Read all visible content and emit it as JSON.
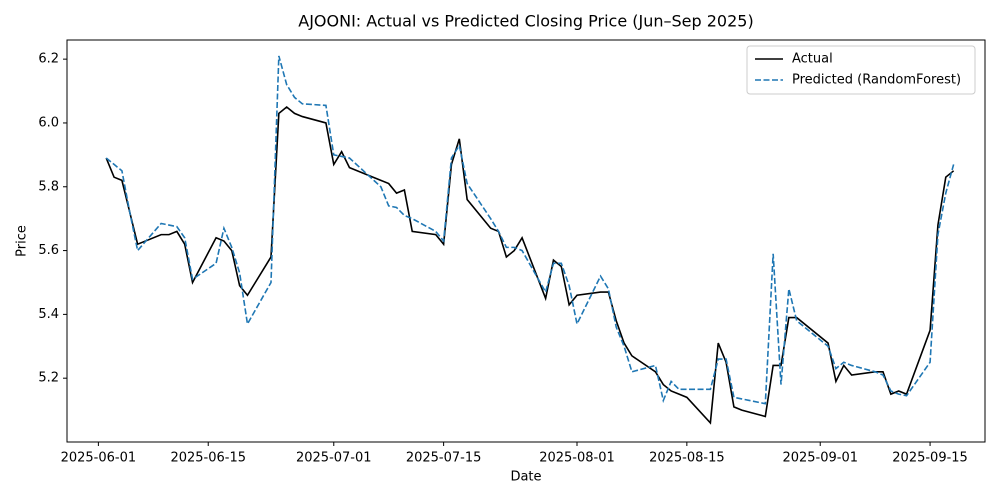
{
  "chart_data": {
    "type": "line",
    "title": "AJOONI: Actual vs Predicted Closing Price (Jun–Sep 2025)",
    "x_label": "Date",
    "y_label": "Price",
    "x": [
      "2025-06-02",
      "2025-06-03",
      "2025-06-04",
      "2025-06-05",
      "2025-06-06",
      "2025-06-09",
      "2025-06-10",
      "2025-06-11",
      "2025-06-12",
      "2025-06-13",
      "2025-06-16",
      "2025-06-17",
      "2025-06-18",
      "2025-06-19",
      "2025-06-20",
      "2025-06-23",
      "2025-06-24",
      "2025-06-25",
      "2025-06-26",
      "2025-06-27",
      "2025-06-30",
      "2025-07-01",
      "2025-07-02",
      "2025-07-03",
      "2025-07-07",
      "2025-07-08",
      "2025-07-09",
      "2025-07-10",
      "2025-07-11",
      "2025-07-14",
      "2025-07-15",
      "2025-07-16",
      "2025-07-17",
      "2025-07-18",
      "2025-07-21",
      "2025-07-22",
      "2025-07-23",
      "2025-07-24",
      "2025-07-25",
      "2025-07-28",
      "2025-07-29",
      "2025-07-30",
      "2025-07-31",
      "2025-08-01",
      "2025-08-04",
      "2025-08-05",
      "2025-08-06",
      "2025-08-07",
      "2025-08-08",
      "2025-08-11",
      "2025-08-12",
      "2025-08-13",
      "2025-08-14",
      "2025-08-15",
      "2025-08-18",
      "2025-08-19",
      "2025-08-20",
      "2025-08-21",
      "2025-08-22",
      "2025-08-25",
      "2025-08-26",
      "2025-08-27",
      "2025-08-28",
      "2025-08-29",
      "2025-09-02",
      "2025-09-03",
      "2025-09-04",
      "2025-09-05",
      "2025-09-08",
      "2025-09-09",
      "2025-09-10",
      "2025-09-11",
      "2025-09-12",
      "2025-09-15",
      "2025-09-16",
      "2025-09-17",
      "2025-09-18"
    ],
    "series": [
      {
        "name": "Actual",
        "color": "#000000",
        "dash": "solid",
        "values": [
          5.89,
          5.83,
          5.82,
          5.72,
          5.62,
          5.65,
          5.65,
          5.66,
          5.62,
          5.5,
          5.64,
          5.63,
          5.6,
          5.49,
          5.46,
          5.58,
          6.03,
          6.05,
          6.03,
          6.02,
          6.0,
          5.87,
          5.91,
          5.86,
          5.82,
          5.81,
          5.78,
          5.79,
          5.66,
          5.65,
          5.62,
          5.87,
          5.95,
          5.76,
          5.67,
          5.66,
          5.58,
          5.6,
          5.64,
          5.45,
          5.57,
          5.55,
          5.43,
          5.46,
          5.47,
          5.47,
          5.38,
          5.31,
          5.27,
          5.22,
          5.18,
          5.16,
          5.15,
          5.14,
          5.06,
          5.31,
          5.25,
          5.11,
          5.1,
          5.08,
          5.24,
          5.24,
          5.39,
          5.39,
          5.31,
          5.19,
          5.24,
          5.21,
          5.22,
          5.22,
          5.15,
          5.16,
          5.15,
          5.35,
          5.68,
          5.83,
          5.85
        ]
      },
      {
        "name": "Predicted (RandomForest)",
        "color": "#1f77b4",
        "dash": "dashed",
        "values": [
          5.89,
          5.87,
          5.85,
          5.72,
          5.6,
          5.685,
          5.68,
          5.675,
          5.64,
          5.51,
          5.56,
          5.67,
          5.61,
          5.53,
          5.37,
          5.5,
          6.21,
          6.12,
          6.08,
          6.06,
          6.055,
          5.9,
          5.895,
          5.89,
          5.8,
          5.74,
          5.735,
          5.71,
          5.7,
          5.66,
          5.63,
          5.89,
          5.93,
          5.81,
          5.7,
          5.66,
          5.61,
          5.61,
          5.6,
          5.47,
          5.56,
          5.56,
          5.49,
          5.37,
          5.52,
          5.48,
          5.36,
          5.3,
          5.22,
          5.24,
          5.13,
          5.19,
          5.165,
          5.165,
          5.165,
          5.26,
          5.26,
          5.14,
          5.135,
          5.12,
          5.59,
          5.18,
          5.48,
          5.38,
          5.3,
          5.23,
          5.25,
          5.24,
          5.22,
          5.21,
          5.16,
          5.15,
          5.145,
          5.25,
          5.65,
          5.78,
          5.87
        ]
      }
    ],
    "xlim": [
      "2025-05-28",
      "2025-09-22"
    ],
    "xticks": [
      "2025-06-01",
      "2025-06-15",
      "2025-07-01",
      "2025-07-15",
      "2025-08-01",
      "2025-08-15",
      "2025-09-01",
      "2025-09-15"
    ],
    "ylim": [
      5.0,
      6.26
    ],
    "yticks": [
      {
        "value": 5.2,
        "label": "5.2"
      },
      {
        "value": 5.4,
        "label": "5.4"
      },
      {
        "value": 5.6,
        "label": "5.6"
      },
      {
        "value": 5.8,
        "label": "5.8"
      },
      {
        "value": 6.0,
        "label": "6.0"
      },
      {
        "value": 6.2,
        "label": "6.2"
      }
    ],
    "legend": "upper right",
    "grid": false
  }
}
